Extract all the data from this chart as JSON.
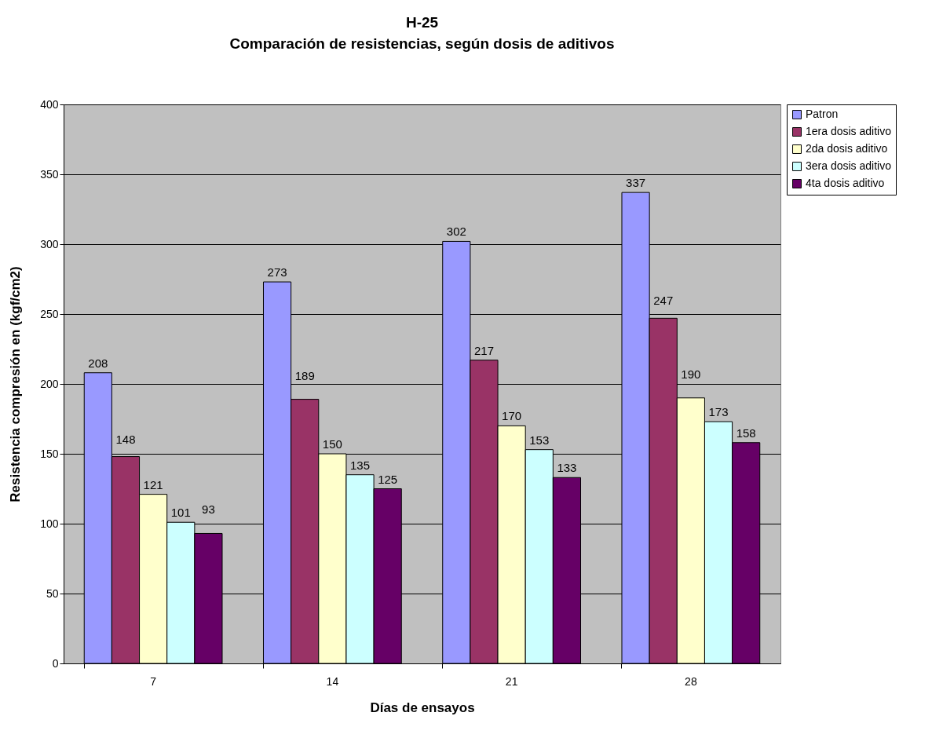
{
  "chart_data": {
    "type": "bar",
    "title": "H-25",
    "subtitle": "Comparación de resistencias, según dosis de aditivos",
    "xlabel": "Días de ensayos",
    "ylabel": "Resistencia compresión en (kgf/cm2)",
    "categories": [
      "7",
      "14",
      "21",
      "28"
    ],
    "series": [
      {
        "name": "Patron",
        "color": "#9999ff",
        "values": [
          208,
          273,
          302,
          337
        ]
      },
      {
        "name": "1era dosis aditivo",
        "color": "#993366",
        "values": [
          148,
          189,
          217,
          247
        ]
      },
      {
        "name": "2da dosis aditivo",
        "color": "#ffffcc",
        "values": [
          121,
          150,
          170,
          190
        ]
      },
      {
        "name": "3era dosis aditivo",
        "color": "#ccffff",
        "values": [
          101,
          135,
          153,
          173
        ]
      },
      {
        "name": "4ta dosis aditivo",
        "color": "#660066",
        "values": [
          93,
          125,
          133,
          158
        ]
      }
    ],
    "ylim": [
      0,
      400
    ],
    "yticks": [
      0,
      50,
      100,
      150,
      200,
      250,
      300,
      350,
      400
    ],
    "grid": "y",
    "legend": "right",
    "data_labels": true
  }
}
